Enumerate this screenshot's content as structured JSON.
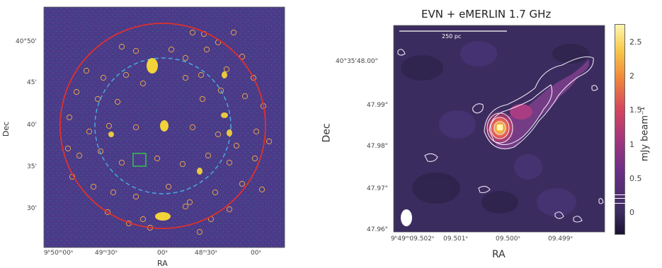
{
  "left_panel": {
    "y_label": "Dec",
    "x_label": "RA",
    "y_ticks": [
      "40°50'",
      "45'",
      "40'",
      "35'",
      "30'"
    ],
    "x_ticks": [
      "9ʰ50ᵐ00ˢ",
      "49ᵐ30ˢ",
      "00ˢ",
      "48ᵐ30ˢ",
      "00ˢ"
    ],
    "colors": {
      "background": "#4b3a88",
      "outer_circle": "#e0302c",
      "inner_circle": "#4aa8e0",
      "source_marker": "#e8a44a",
      "highlight_box": "#33c24a",
      "bright_source": "#f2d33a"
    }
  },
  "right_panel": {
    "title": "EVN + eMERLIN 1.7 GHz",
    "scale_bar_label": "250 pc",
    "y_label": "Dec",
    "x_label": "RA",
    "y_ticks": [
      "40°35'48.00\"",
      "47.99\"",
      "47.98\"",
      "47.97\"",
      "47.96\""
    ],
    "x_ticks": [
      "9ʰ49ᵐ09.502ˢ",
      "09.501ˢ",
      "09.500ˢ",
      "09.499ˢ"
    ],
    "colorbar": {
      "label": "mJy beam⁻¹",
      "ticks": [
        "2.5",
        "2",
        "1.5",
        "1",
        "0.5",
        "0"
      ],
      "range": [
        -0.3,
        2.75
      ]
    }
  }
}
